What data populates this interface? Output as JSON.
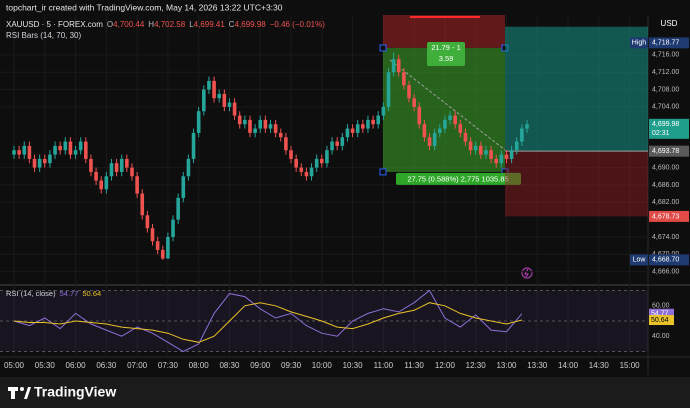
{
  "header": {
    "text": "topchart_ir created with TradingView.com, May 14, 2026 13:22 UTC+3:30"
  },
  "chart_data": {
    "type": "candlestick",
    "symbol": "XAUUSD · 5 · FOREX.com",
    "legend_values": [
      "O",
      "4,700.44",
      "H",
      "4,702.58",
      "L",
      "4,699.41",
      "C",
      "4,699.98",
      "−0.46 (−0.01%)"
    ],
    "indicator_label": "RSI Bars (14, 70, 30)",
    "currency": "USD",
    "up_color": "#26a69a",
    "down_color": "#ef5350",
    "open": [
      4693,
      4694,
      4693,
      4695,
      4692,
      4690,
      4692,
      4691,
      4693,
      4695,
      4694,
      4696,
      4693,
      4694,
      4696,
      4692,
      4689,
      4687,
      4685,
      4688,
      4691,
      4689,
      4692,
      4690,
      4688,
      4684,
      4679,
      4676,
      4673,
      4671,
      4669,
      4674,
      4678,
      4683,
      4688,
      4692,
      4698,
      4703,
      4708,
      4710,
      4706,
      4707,
      4704,
      4705,
      4702,
      4700,
      4701,
      4698,
      4699,
      4701,
      4699,
      4700,
      4698,
      4697,
      4694,
      4692,
      4690,
      4689,
      4688,
      4690,
      4692,
      4691,
      4694,
      4696,
      4695,
      4697,
      4699,
      4698,
      4700,
      4699,
      4701,
      4700,
      4702,
      4704,
      4712,
      4715,
      4712,
      4709,
      4706,
      4704,
      4700,
      4697,
      4695,
      4698,
      4699,
      4701,
      4702,
      4700,
      4698,
      4696,
      4694,
      4695,
      4693,
      4694,
      4692,
      4691,
      4693,
      4692,
      4694,
      4696,
      4699
    ],
    "high": [
      4695,
      4695,
      4696,
      4696,
      4693,
      4693,
      4693,
      4694,
      4696,
      4696,
      4697,
      4697,
      4695,
      4697,
      4697,
      4693,
      4690,
      4688,
      4689,
      4692,
      4692,
      4693,
      4693,
      4691,
      4689,
      4685,
      4680,
      4677,
      4674,
      4672,
      4675,
      4679,
      4684,
      4689,
      4693,
      4699,
      4704,
      4709,
      4711,
      4711,
      4708,
      4708,
      4706,
      4706,
      4703,
      4702,
      4702,
      4700,
      4702,
      4702,
      4701,
      4701,
      4699,
      4698,
      4695,
      4693,
      4691,
      4690,
      4691,
      4693,
      4693,
      4695,
      4697,
      4697,
      4698,
      4700,
      4700,
      4701,
      4701,
      4702,
      4702,
      4703,
      4705,
      4713,
      4716.5,
      4716,
      4713,
      4710,
      4707,
      4705,
      4701,
      4698,
      4699,
      4700,
      4702,
      4703,
      4703,
      4701,
      4699,
      4697,
      4696,
      4696,
      4695,
      4695,
      4693,
      4694,
      4694,
      4695,
      4697,
      4700,
      4701
    ],
    "low": [
      4692,
      4692,
      4692,
      4691,
      4689,
      4689,
      4690,
      4690,
      4692,
      4693,
      4693,
      4692,
      4692,
      4693,
      4691,
      4688,
      4686,
      4684,
      4684,
      4687,
      4688,
      4688,
      4689,
      4687,
      4683,
      4678,
      4675,
      4672,
      4670,
      4668.7,
      4669,
      4673,
      4677,
      4682,
      4687,
      4691,
      4697,
      4702,
      4707,
      4705,
      4705,
      4703,
      4703,
      4701,
      4699,
      4699,
      4697,
      4697,
      4698,
      4698,
      4698,
      4697,
      4696,
      4693,
      4691,
      4689,
      4688,
      4687,
      4687,
      4689,
      4690,
      4690,
      4693,
      4694,
      4694,
      4696,
      4697,
      4697,
      4698,
      4698,
      4699,
      4699,
      4701,
      4703,
      4711,
      4711,
      4708,
      4705,
      4703,
      4699,
      4696,
      4694,
      4694,
      4697,
      4698,
      4700,
      4699,
      4697,
      4695,
      4693,
      4693,
      4692,
      4692,
      4691,
      4690,
      4690,
      4691,
      4691,
      4693,
      4695,
      4698
    ],
    "close": [
      4694,
      4693,
      4695,
      4692,
      4690,
      4692,
      4691,
      4693,
      4695,
      4694,
      4696,
      4693,
      4694,
      4696,
      4692,
      4689,
      4687,
      4685,
      4688,
      4691,
      4689,
      4692,
      4690,
      4688,
      4684,
      4679,
      4676,
      4673,
      4671,
      4669,
      4674,
      4678,
      4683,
      4688,
      4692,
      4698,
      4703,
      4708,
      4710,
      4706,
      4707,
      4704,
      4705,
      4702,
      4700,
      4701,
      4698,
      4699,
      4701,
      4699,
      4700,
      4698,
      4697,
      4694,
      4692,
      4690,
      4689,
      4688,
      4690,
      4692,
      4691,
      4694,
      4696,
      4695,
      4697,
      4699,
      4698,
      4700,
      4699,
      4701,
      4700,
      4702,
      4704,
      4712,
      4715,
      4712,
      4709,
      4706,
      4704,
      4700,
      4697,
      4695,
      4698,
      4699,
      4701,
      4702,
      4700,
      4698,
      4696,
      4694,
      4695,
      4693,
      4694,
      4692,
      4691,
      4693,
      4692,
      4694,
      4696,
      4699,
      4699.98
    ],
    "ylim": [
      4663.6,
      4725.2
    ],
    "yticks": [
      {
        "value": 4716,
        "label": "4,716.00"
      },
      {
        "value": 4712,
        "label": "4,712.00"
      },
      {
        "value": 4708,
        "label": "4,708.00"
      },
      {
        "value": 4704,
        "label": "4,704.00"
      },
      {
        "value": 4690,
        "label": "4,690.00"
      },
      {
        "value": 4686,
        "label": "4,686.00"
      },
      {
        "value": 4682,
        "label": "4,682.00"
      },
      {
        "value": 4674,
        "label": "4,674.00"
      },
      {
        "value": 4670,
        "label": "4,670.00"
      },
      {
        "value": 4666,
        "label": "4,666.00"
      }
    ],
    "xticks": [
      "05:00",
      "05:30",
      "06:00",
      "06:30",
      "07:00",
      "07:30",
      "08:00",
      "08:30",
      "09:00",
      "09:30",
      "10:00",
      "10:30",
      "11:00",
      "11:30",
      "12:00",
      "12:30",
      "13:00",
      "13:30",
      "14:00",
      "14:30",
      "15:00"
    ],
    "price_labels": [
      {
        "value": 4718.77,
        "label": "4,718.77",
        "tag": "High",
        "color": "#1e3a70"
      },
      {
        "value": 4699.98,
        "label": "4,699.98",
        "sub": "02:31",
        "color": "#1f9e8c"
      },
      {
        "value": 4693.78,
        "label": "4,693.78",
        "color": "#5a5a5a"
      },
      {
        "value": 4678.73,
        "label": "4,678.73",
        "color": "#e04a47"
      },
      {
        "value": 4668.7,
        "label": "4,668.70",
        "tag": "Low",
        "color": "#1e3a70"
      }
    ],
    "ruler": {
      "upper": 4717.6,
      "lower": 4689,
      "label": [
        "21.79 - 1",
        "3.59"
      ],
      "stats": "27.75 (0.588%) 2,775 1035.85"
    },
    "long_position": {
      "target": 4722.5,
      "entry": 4693.78,
      "stop": 4678.73
    },
    "rsi": {
      "label": "RSI (14, close)",
      "series": [
        {
          "color": "#8e6fd8",
          "value_label": "54.77",
          "values": [
            50,
            47,
            52,
            45,
            55,
            48,
            44,
            40,
            46,
            42,
            36,
            30,
            35,
            55,
            68,
            66,
            58,
            52,
            55,
            47,
            42,
            40,
            50,
            55,
            58,
            56,
            62,
            70,
            52,
            46,
            54,
            44,
            43,
            54.77
          ]
        },
        {
          "color": "#e8c228",
          "value_label": "50.64",
          "values": [
            50,
            49,
            49,
            48,
            50,
            49,
            48,
            46,
            45,
            44,
            42,
            38,
            36,
            40,
            50,
            60,
            62,
            60,
            56,
            53,
            50,
            46,
            45,
            48,
            52,
            55,
            57,
            62,
            60,
            55,
            52,
            50,
            48,
            50.64
          ]
        }
      ],
      "ylim": [
        29,
        71
      ],
      "yticks": [
        {
          "value": 60,
          "label": "60.00"
        },
        {
          "value": 40,
          "label": "40.00"
        }
      ],
      "bands": [
        70,
        50,
        30
      ]
    }
  },
  "footer": {
    "brand": "TradingView"
  }
}
